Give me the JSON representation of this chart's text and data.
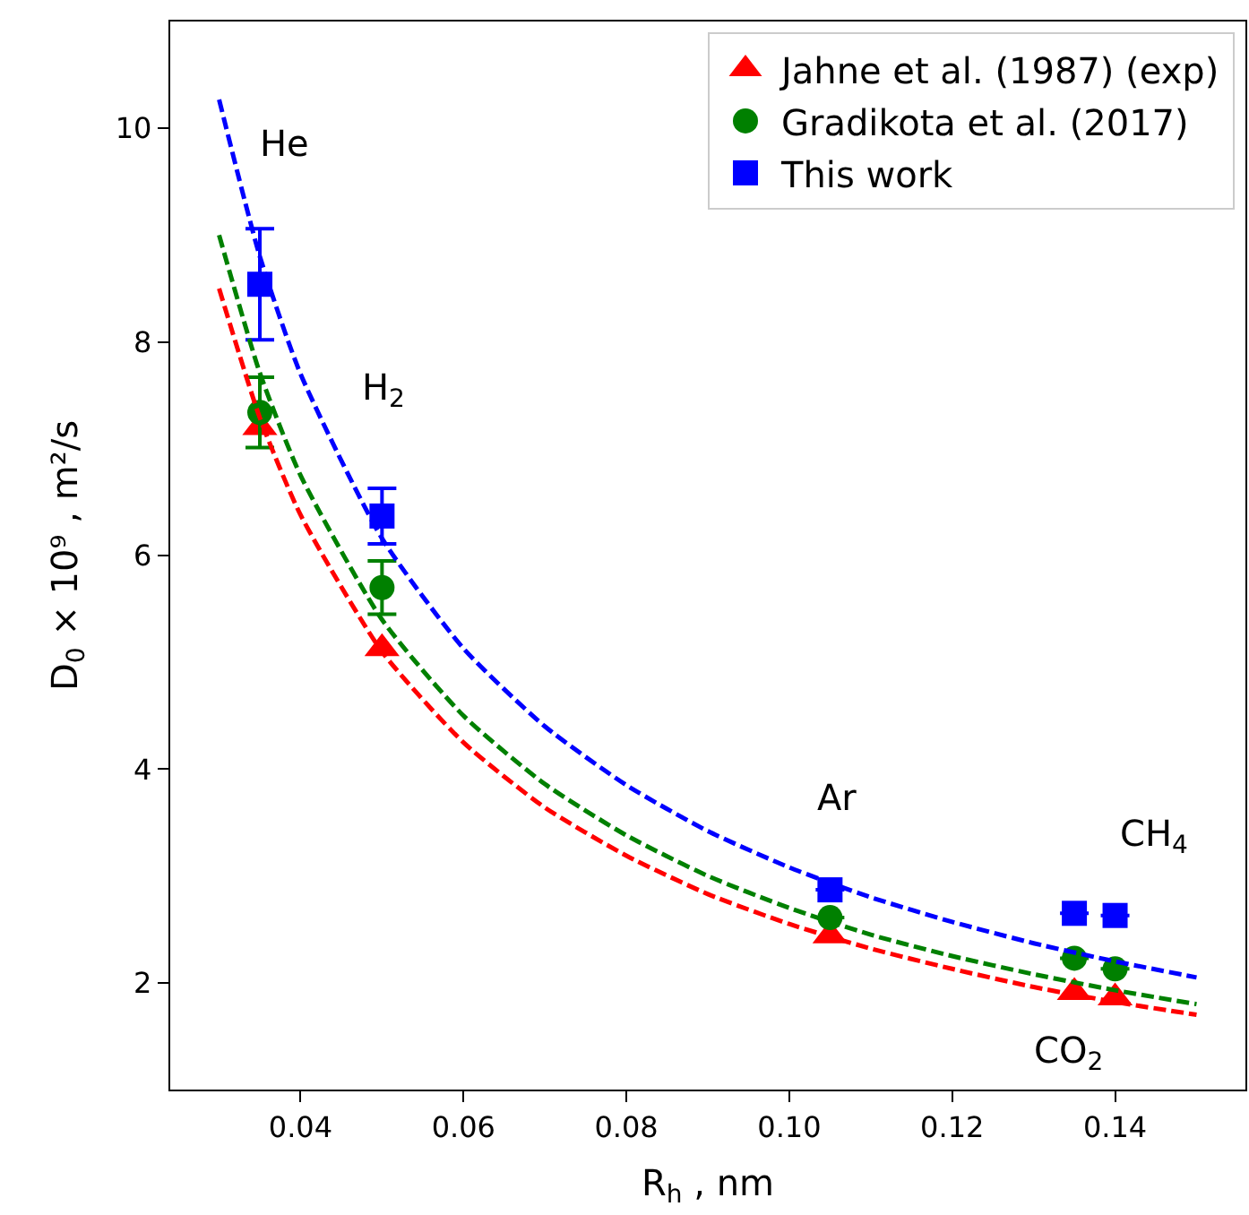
{
  "chart_data": {
    "type": "scatter",
    "xlabel": "R$_{h}$ , nm",
    "ylabel": "D$_{0}$ × 10⁹ , m²/s",
    "xlim": [
      0.024,
      0.156
    ],
    "xticks": [
      {
        "value": 0.04,
        "label": "0.04"
      },
      {
        "value": 0.06,
        "label": "0.06"
      },
      {
        "value": 0.08,
        "label": "0.08"
      },
      {
        "value": 0.1,
        "label": "0.10"
      },
      {
        "value": 0.12,
        "label": "0.12"
      },
      {
        "value": 0.14,
        "label": "0.14"
      }
    ],
    "ylim": [
      1.0,
      11.0
    ],
    "yticks": [
      2,
      4,
      6,
      8,
      10
    ],
    "legend": "top right",
    "series": [
      {
        "name": "Jahne et al. (1987) (exp)",
        "color": "#ff0000",
        "marker": "triangle",
        "x": [
          0.035,
          0.05,
          0.105,
          0.135,
          0.14
        ],
        "values": [
          7.2,
          5.13,
          2.44,
          1.91,
          1.86
        ]
      },
      {
        "name": "Gradikota et al. (2017)",
        "color": "#008000",
        "marker": "circle",
        "x": [
          0.035,
          0.05,
          0.105,
          0.135,
          0.14
        ],
        "values": [
          7.34,
          5.7,
          2.61,
          2.23,
          2.13
        ],
        "errors": [
          0.33,
          0.25,
          null,
          null,
          null
        ]
      },
      {
        "name": "This work",
        "color": "#0000ff",
        "marker": "square",
        "x": [
          0.035,
          0.05,
          0.105,
          0.135,
          0.14
        ],
        "values": [
          8.54,
          6.37,
          2.87,
          2.65,
          2.63
        ],
        "errors": [
          0.52,
          0.26,
          null,
          null,
          null
        ]
      },
      {
        "type": "line",
        "color": "#ff0000",
        "line_style": "dashed",
        "marker": "none",
        "x": [
          0.03,
          0.035,
          0.04,
          0.05,
          0.06,
          0.07,
          0.08,
          0.09,
          0.1,
          0.11,
          0.12,
          0.13,
          0.14,
          0.15
        ],
        "values": [
          8.5,
          7.29,
          6.38,
          5.1,
          4.25,
          3.64,
          3.19,
          2.83,
          2.55,
          2.32,
          2.13,
          1.96,
          1.82,
          1.7
        ]
      },
      {
        "type": "line",
        "color": "#008000",
        "line_style": "dashed",
        "marker": "none",
        "x": [
          0.03,
          0.035,
          0.04,
          0.05,
          0.06,
          0.07,
          0.08,
          0.09,
          0.1,
          0.11,
          0.12,
          0.13,
          0.14,
          0.15
        ],
        "values": [
          9.0,
          7.71,
          6.75,
          5.4,
          4.5,
          3.86,
          3.38,
          3.0,
          2.7,
          2.45,
          2.25,
          2.08,
          1.93,
          1.8
        ]
      },
      {
        "type": "line",
        "color": "#0000ff",
        "line_style": "dashed",
        "marker": "none",
        "x": [
          0.03,
          0.035,
          0.04,
          0.05,
          0.06,
          0.07,
          0.08,
          0.09,
          0.1,
          0.11,
          0.12,
          0.13,
          0.14,
          0.15
        ],
        "values": [
          10.27,
          8.8,
          7.7,
          6.16,
          5.13,
          4.4,
          3.85,
          3.42,
          3.08,
          2.8,
          2.57,
          2.37,
          2.2,
          2.05
        ]
      }
    ],
    "annotations": [
      "He",
      {
        "text": "H$_{2}$",
        "x": 0.05,
        "y": 6.37
      },
      {
        "text": "Ar",
        "x": 0.105,
        "y": 2.87
      },
      {
        "text": "CH$_{4}$",
        "x": 0.14,
        "y": 2.63
      },
      {
        "text": "CO$_{2}$",
        "x": 0.135,
        "y": 1.91
      }
    ]
  }
}
